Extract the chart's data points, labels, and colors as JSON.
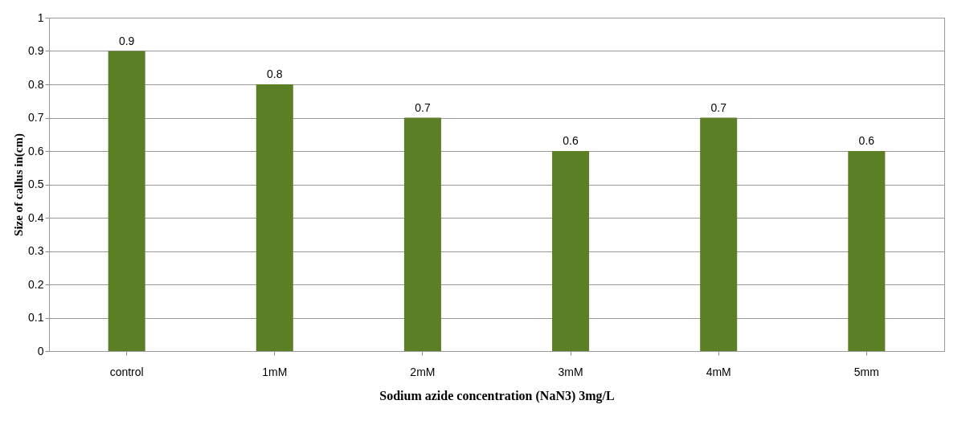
{
  "chart_data": {
    "type": "bar",
    "xlabel": "Sodium  azide  concentration (NaN3) 3mg/L",
    "ylabel": "Size of callus in(cm)",
    "categories": [
      "control",
      "1mM",
      "2mM",
      "3mM",
      "4mM",
      "5mm"
    ],
    "values": [
      0.9,
      0.8,
      0.7,
      0.6,
      0.7,
      0.6
    ],
    "color": "#5b7f24",
    "ylim": [
      0,
      1
    ],
    "yticks": [
      0,
      0.1,
      0.2,
      0.3,
      0.4,
      0.5,
      0.6,
      0.7,
      0.8,
      0.9,
      1
    ],
    "grid": "y",
    "data_labels": true
  }
}
